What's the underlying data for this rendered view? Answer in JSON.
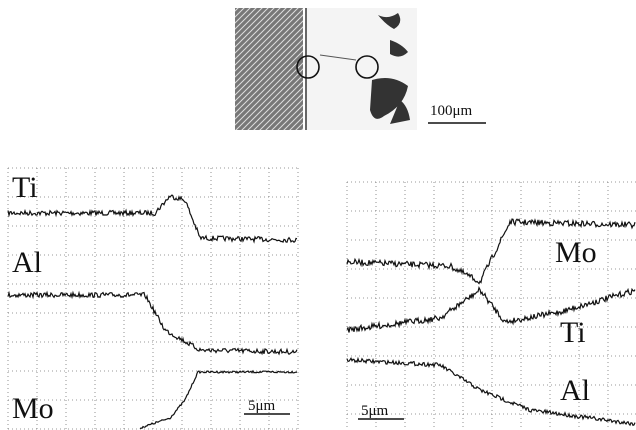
{
  "micrograph": {
    "scale_bar": "100μm"
  },
  "panels": [
    {
      "labels": [
        "Ti",
        "Al",
        "Mo"
      ],
      "scale_bar": "5μm"
    },
    {
      "labels": [
        "Mo",
        "Ti",
        "Al"
      ],
      "scale_bar": "5μm"
    }
  ]
}
